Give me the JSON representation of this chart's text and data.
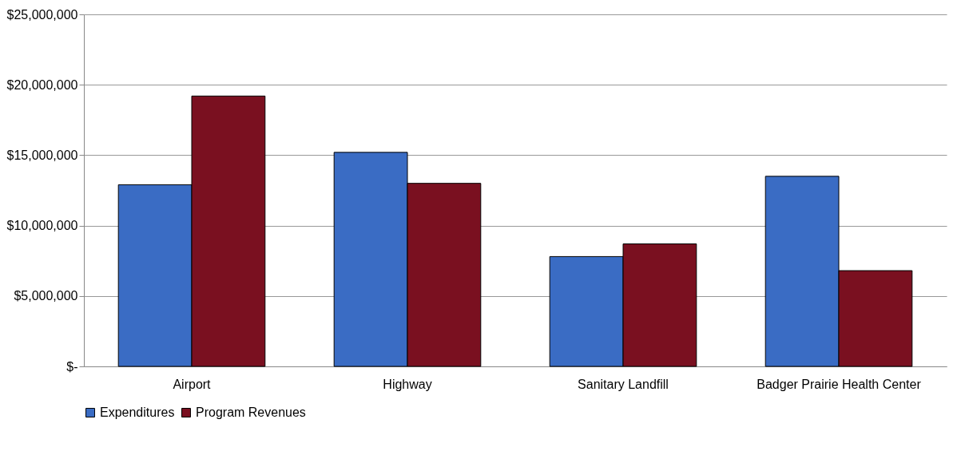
{
  "chart_data": {
    "type": "bar",
    "categories": [
      "Airport",
      "Highway",
      "Sanitary Landfill",
      "Badger Prairie Health Center"
    ],
    "series": [
      {
        "name": "Expenditures",
        "color": "#3a6cc4",
        "values": [
          12900000,
          15200000,
          7800000,
          13500000
        ]
      },
      {
        "name": "Program Revenues",
        "color": "#7a1020",
        "values": [
          19200000,
          13000000,
          8700000,
          6800000
        ]
      }
    ],
    "ylim": [
      0,
      25000000
    ],
    "yticks": [
      {
        "value": 0,
        "label": "$-"
      },
      {
        "value": 5000000,
        "label": "$5,000,000"
      },
      {
        "value": 10000000,
        "label": "$10,000,000"
      },
      {
        "value": 15000000,
        "label": "$15,000,000"
      },
      {
        "value": 20000000,
        "label": "$20,000,000"
      },
      {
        "value": 25000000,
        "label": "$25,000,000"
      }
    ],
    "grid": "y",
    "legend": "bottom"
  }
}
